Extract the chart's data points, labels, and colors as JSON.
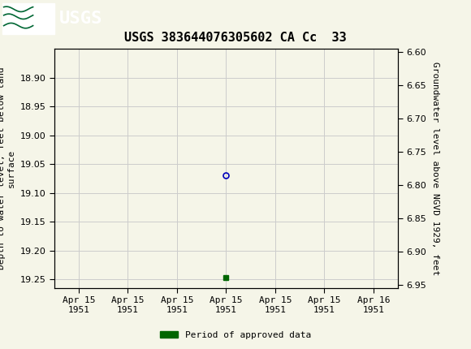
{
  "title": "USGS 383644076305602 CA Cc  33",
  "ylabel_left": "Depth to water level, feet below land\nsurface",
  "ylabel_right": "Groundwater level above NGVD 1929, feet",
  "ylim_left": [
    18.85,
    19.265
  ],
  "ylim_right_top": 6.955,
  "ylim_right_bottom": 6.595,
  "yticks_left": [
    18.9,
    18.95,
    19.0,
    19.05,
    19.1,
    19.15,
    19.2,
    19.25
  ],
  "yticks_right": [
    6.95,
    6.9,
    6.85,
    6.8,
    6.75,
    6.7,
    6.65,
    6.6
  ],
  "data_point_x": 3.0,
  "data_point_y": 19.07,
  "data_point_color": "#0000bb",
  "data_point_marker_size": 5,
  "approved_x": 3.0,
  "approved_y": 19.247,
  "approved_color": "#006600",
  "approved_marker_size": 4,
  "xlim": [
    -0.5,
    6.5
  ],
  "xtick_positions": [
    0,
    1,
    2,
    3,
    4,
    5,
    6
  ],
  "xtick_labels": [
    "Apr 15\n1951",
    "Apr 15\n1951",
    "Apr 15\n1951",
    "Apr 15\n1951",
    "Apr 15\n1951",
    "Apr 15\n1951",
    "Apr 16\n1951"
  ],
  "grid_color": "#cccccc",
  "bg_color": "#f5f5e8",
  "plot_bg_color": "#f5f5e8",
  "header_color": "#006633",
  "legend_label": "Period of approved data",
  "legend_color": "#006600",
  "font_family": "DejaVu Sans Mono",
  "title_fontsize": 11,
  "tick_fontsize": 8,
  "ylabel_fontsize": 8,
  "fig_width": 5.8,
  "fig_height": 4.3,
  "fig_dpi": 100
}
